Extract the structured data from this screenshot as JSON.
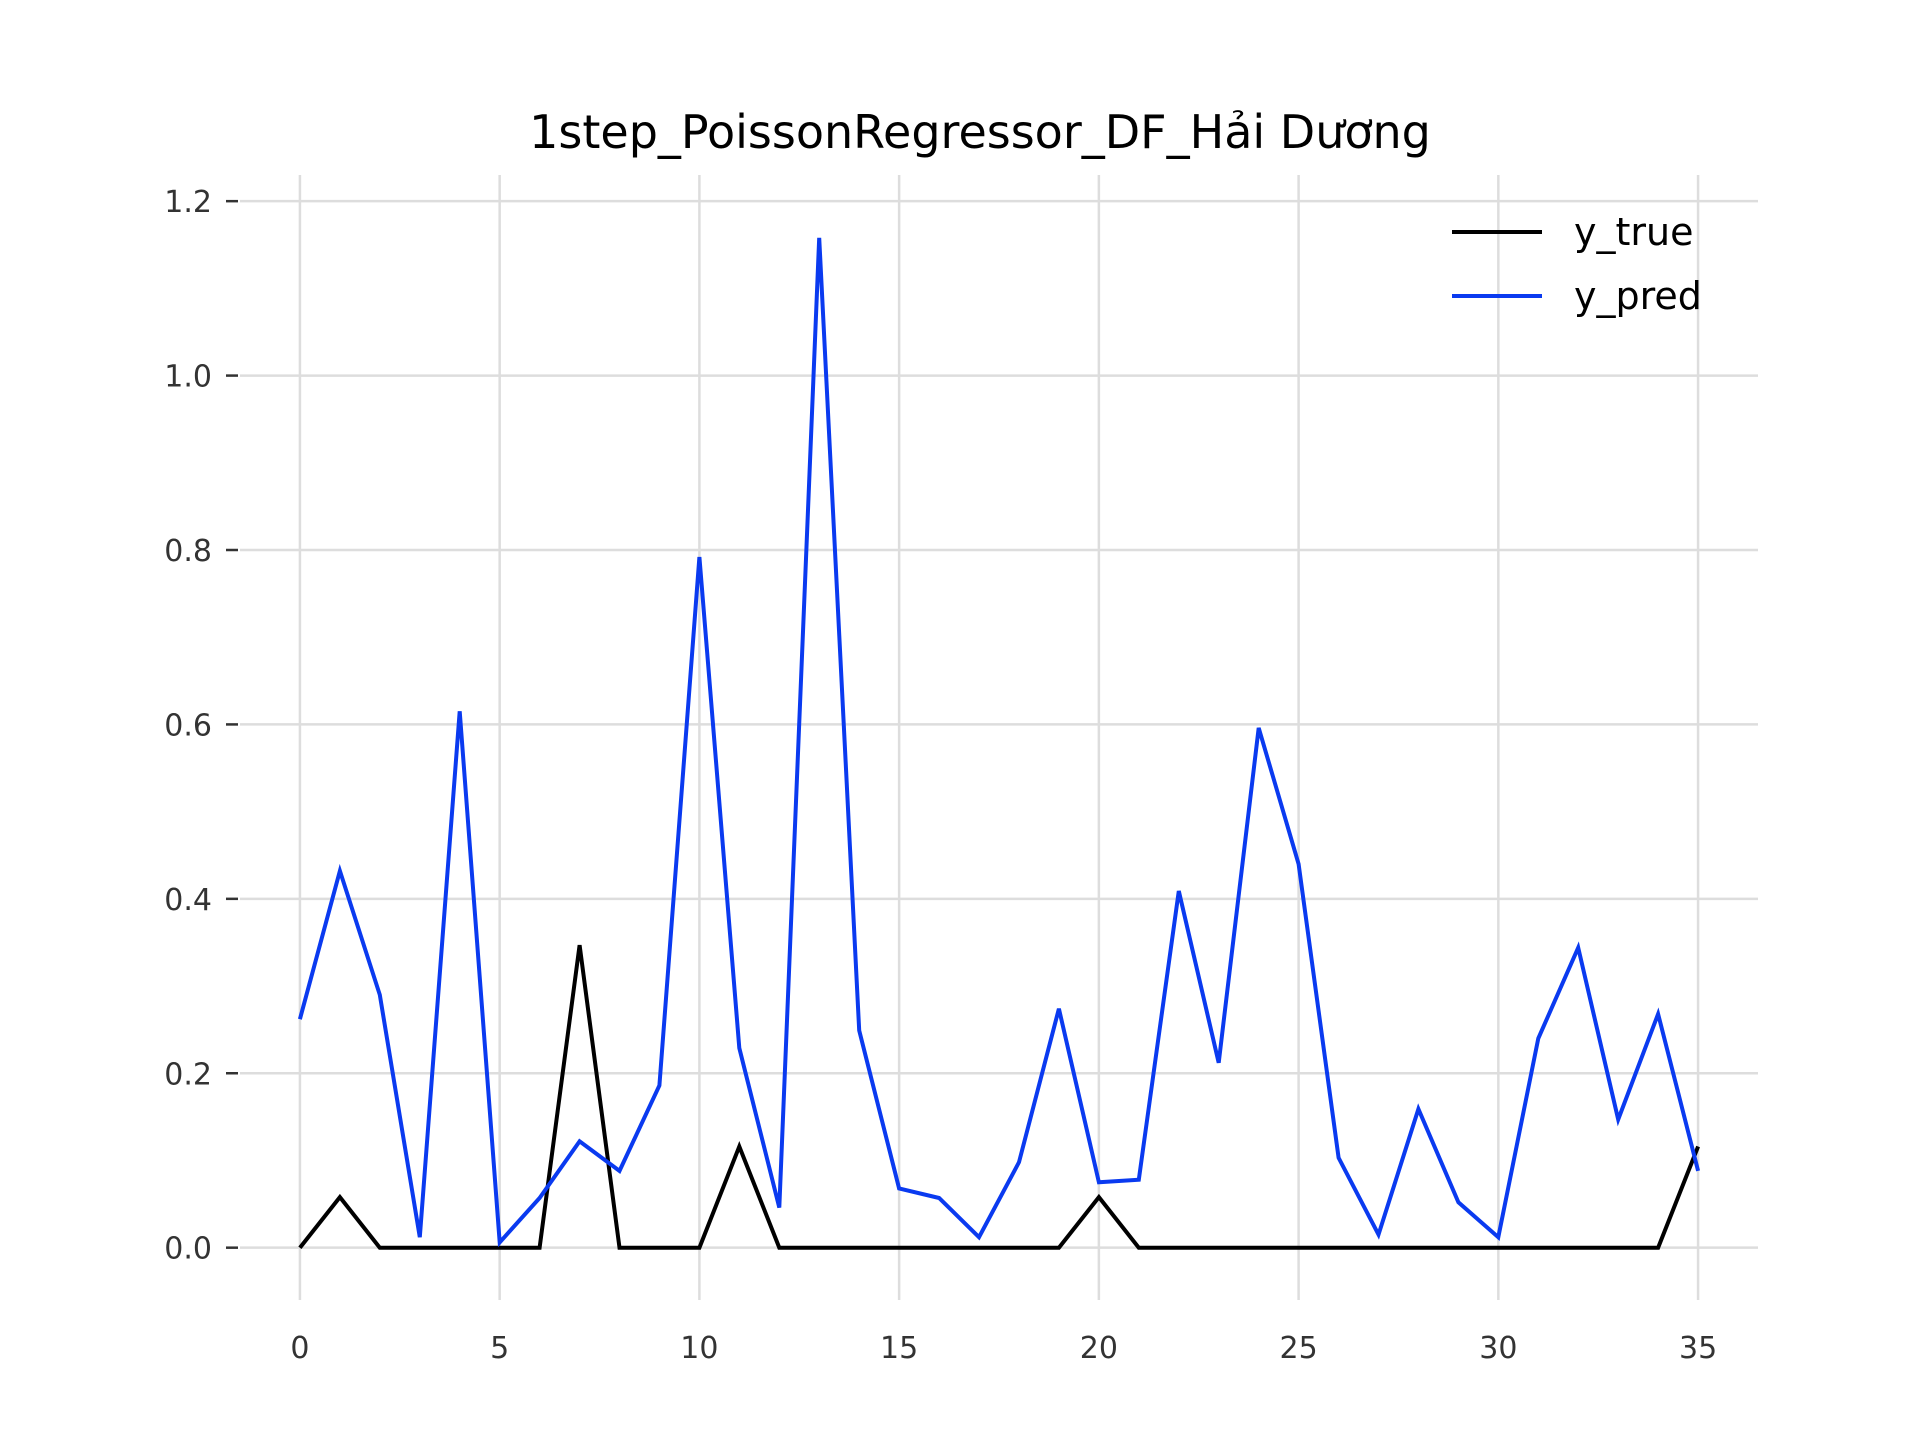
{
  "chart_data": {
    "type": "line",
    "title": "1step_PoissonRegressor_DF_Hải Dương",
    "xlabel": "",
    "ylabel": "",
    "xlim": [
      -1.5,
      36.5
    ],
    "ylim": [
      -0.06,
      1.23
    ],
    "grid": true,
    "legend": "top-right",
    "x_ticks": [
      0,
      5,
      10,
      15,
      20,
      25,
      30,
      35
    ],
    "x_tick_labels": [
      "0",
      "5",
      "10",
      "15",
      "20",
      "25",
      "30",
      "35"
    ],
    "y_ticks": [
      0.0,
      0.2,
      0.4,
      0.6,
      0.8,
      1.0,
      1.2
    ],
    "y_tick_labels": [
      "0.0",
      "0.2",
      "0.4",
      "0.6",
      "0.8",
      "1.0",
      "1.2"
    ],
    "x": [
      0,
      1,
      2,
      3,
      4,
      5,
      6,
      7,
      8,
      9,
      10,
      11,
      12,
      13,
      14,
      15,
      16,
      17,
      18,
      19,
      20,
      21,
      22,
      23,
      24,
      25,
      26,
      27,
      28,
      29,
      30,
      31,
      32,
      33,
      34,
      35
    ],
    "series": [
      {
        "name": "y_true",
        "color": "#000000",
        "values": [
          0,
          0.058,
          0,
          0,
          0,
          0,
          0,
          0.347,
          0,
          0,
          0,
          0.116,
          0,
          0,
          0,
          0,
          0,
          0,
          0,
          0,
          0.058,
          0,
          0,
          0,
          0,
          0,
          0,
          0,
          0,
          0,
          0,
          0,
          0,
          0,
          0,
          0.116
        ]
      },
      {
        "name": "y_pred",
        "color": "#0a3af0",
        "values": [
          0.262,
          0.432,
          0.29,
          0.012,
          0.615,
          0.006,
          0.057,
          0.122,
          0.088,
          0.186,
          0.792,
          0.229,
          0.046,
          1.158,
          0.249,
          0.068,
          0.057,
          0.012,
          0.098,
          0.274,
          0.075,
          0.078,
          0.409,
          0.212,
          0.596,
          0.44,
          0.103,
          0.015,
          0.159,
          0.052,
          0.012,
          0.24,
          0.344,
          0.147,
          0.268,
          0.088
        ]
      }
    ]
  }
}
